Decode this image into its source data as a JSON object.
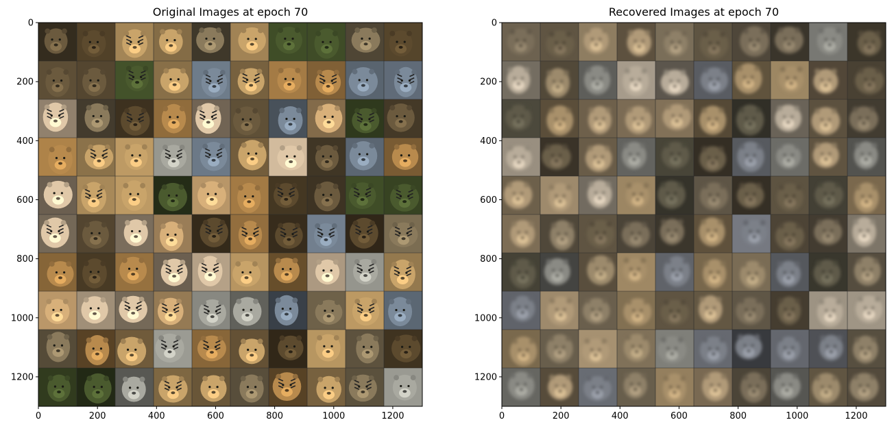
{
  "chart_data": [
    {
      "type": "heatmap",
      "title": "Original Images at epoch 70",
      "grid_rows": 10,
      "grid_cols": 10,
      "xlim": [
        0,
        1300
      ],
      "ylim": [
        1300,
        0
      ],
      "x_ticks": [
        0,
        200,
        400,
        600,
        800,
        1000,
        1200
      ],
      "y_ticks": [
        0,
        200,
        400,
        600,
        800,
        1000,
        1200
      ],
      "tile_style": "original",
      "tile_colors": [
        "#8a7a5c",
        "#c9a46a",
        "#6b5a3e",
        "#b88a4d",
        "#a9a9a0",
        "#5c4a2e",
        "#d8b07a",
        "#7b8a9a",
        "#4a5a2e",
        "#e0c8a8"
      ]
    },
    {
      "type": "heatmap",
      "title": "Recovered Images at epoch 70",
      "grid_rows": 10,
      "grid_cols": 10,
      "xlim": [
        0,
        1300
      ],
      "ylim": [
        1300,
        0
      ],
      "x_ticks": [
        0,
        200,
        400,
        600,
        800,
        1000,
        1200
      ],
      "y_ticks": [
        0,
        200,
        400,
        600,
        800,
        1000,
        1200
      ],
      "tile_style": "recovered",
      "tile_colors": [
        "#8e8068",
        "#a8906a",
        "#7a6e5a",
        "#9c8a6c",
        "#8a8a84",
        "#6a5e4a",
        "#b09a78",
        "#7c8088",
        "#5e5a4a",
        "#b8ac9a"
      ]
    }
  ]
}
